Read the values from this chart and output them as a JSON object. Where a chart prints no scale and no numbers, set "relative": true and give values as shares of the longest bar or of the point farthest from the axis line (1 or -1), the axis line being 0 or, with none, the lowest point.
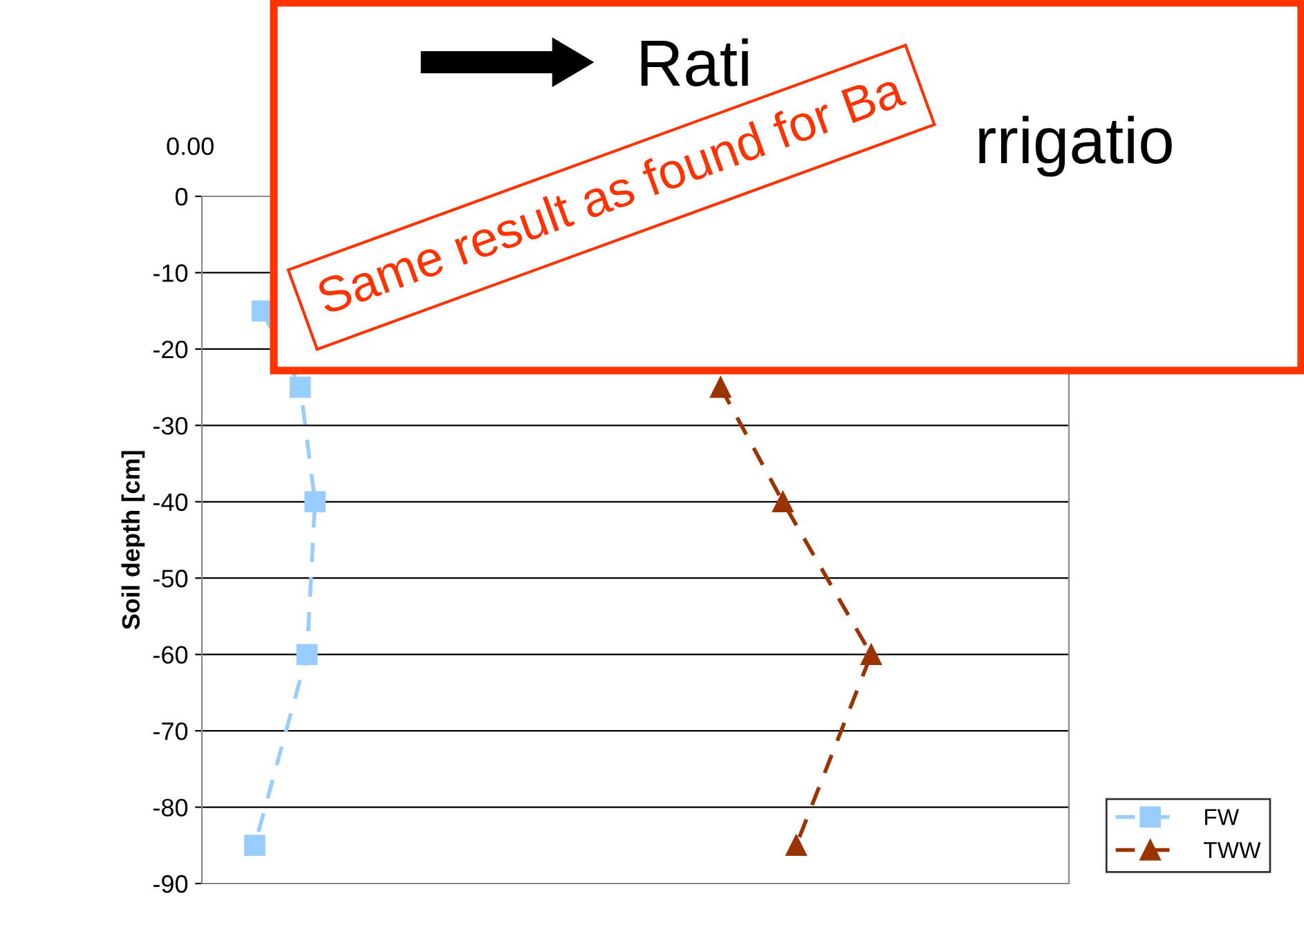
{
  "chart_data": {
    "type": "line",
    "orientation": "horizontal",
    "relative": true,
    "ylabel": "Soil depth [cm]",
    "ylim": [
      -90,
      0
    ],
    "yticks": [
      -90,
      -80,
      -70,
      -60,
      -50,
      -40,
      -30,
      -20,
      -10,
      0
    ],
    "grid": "y",
    "legend": "bottom right",
    "line_style": "dashed",
    "annotations": [
      "Rati",
      "rrigatio",
      "Same result as found for Ba",
      "0.00"
    ],
    "series": [
      {
        "name": "FW",
        "color": "#99ccff",
        "marker": "square",
        "x": [
          -15,
          -25,
          -40,
          -60,
          -85
        ],
        "values": [
          0.09,
          0.147,
          0.169,
          0.157,
          0.079
        ]
      },
      {
        "name": "TWW",
        "color": "#993300",
        "marker": "triangle",
        "x": [
          -25,
          -40,
          -60,
          -85
        ],
        "values": [
          0.775,
          0.868,
          1,
          0.888
        ]
      }
    ]
  }
}
